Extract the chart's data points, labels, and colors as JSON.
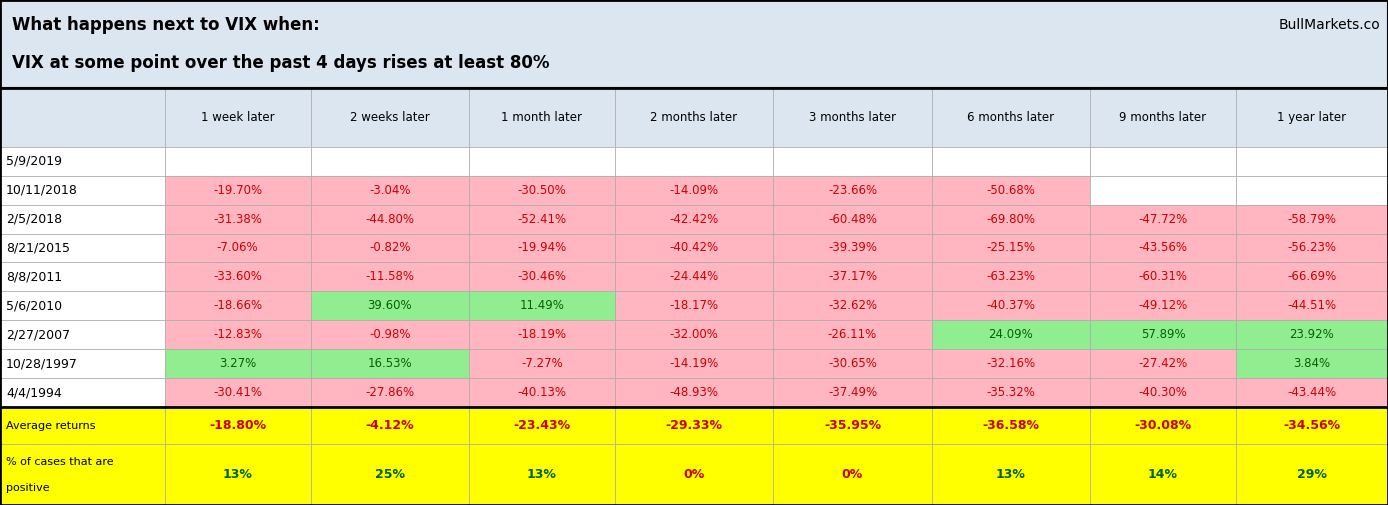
{
  "title_line1": "What happens next to VIX when:",
  "title_line2": "VIX at some point over the past 4 days rises at least 80%",
  "watermark": "BullMarkets.co",
  "columns": [
    "",
    "1 week later",
    "2 weeks later",
    "1 month later",
    "2 months later",
    "3 months later",
    "6 months later",
    "9 months later",
    "1 year later"
  ],
  "rows": [
    {
      "date": "5/9/2019",
      "values": [
        null,
        null,
        null,
        null,
        null,
        null,
        null,
        null
      ]
    },
    {
      "date": "10/11/2018",
      "values": [
        "-19.70%",
        "-3.04%",
        "-30.50%",
        "-14.09%",
        "-23.66%",
        "-50.68%",
        null,
        null
      ]
    },
    {
      "date": "2/5/2018",
      "values": [
        "-31.38%",
        "-44.80%",
        "-52.41%",
        "-42.42%",
        "-60.48%",
        "-69.80%",
        "-47.72%",
        "-58.79%"
      ]
    },
    {
      "date": "8/21/2015",
      "values": [
        "-7.06%",
        "-0.82%",
        "-19.94%",
        "-40.42%",
        "-39.39%",
        "-25.15%",
        "-43.56%",
        "-56.23%"
      ]
    },
    {
      "date": "8/8/2011",
      "values": [
        "-33.60%",
        "-11.58%",
        "-30.46%",
        "-24.44%",
        "-37.17%",
        "-63.23%",
        "-60.31%",
        "-66.69%"
      ]
    },
    {
      "date": "5/6/2010",
      "values": [
        "-18.66%",
        "39.60%",
        "11.49%",
        "-18.17%",
        "-32.62%",
        "-40.37%",
        "-49.12%",
        "-44.51%"
      ]
    },
    {
      "date": "2/27/2007",
      "values": [
        "-12.83%",
        "-0.98%",
        "-18.19%",
        "-32.00%",
        "-26.11%",
        "24.09%",
        "57.89%",
        "23.92%"
      ]
    },
    {
      "date": "10/28/1997",
      "values": [
        "3.27%",
        "16.53%",
        "-7.27%",
        "-14.19%",
        "-30.65%",
        "-32.16%",
        "-27.42%",
        "3.84%"
      ]
    },
    {
      "date": "4/4/1994",
      "values": [
        "-30.41%",
        "-27.86%",
        "-40.13%",
        "-48.93%",
        "-37.49%",
        "-35.32%",
        "-40.30%",
        "-43.44%"
      ]
    }
  ],
  "avg_returns": [
    "-18.80%",
    "-4.12%",
    "-23.43%",
    "-29.33%",
    "-35.95%",
    "-36.58%",
    "-30.08%",
    "-34.56%"
  ],
  "pct_positive": [
    "13%",
    "25%",
    "13%",
    "0%",
    "0%",
    "13%",
    "14%",
    "29%"
  ],
  "header_bg": "#dce6f1",
  "positive_bg": "#90ee90",
  "negative_bg": "#ffb6c1",
  "empty_bg": "#ffffff",
  "avg_bg": "#ffff00",
  "title_bg": "#dce6f1",
  "col_widths_raw": [
    1.3,
    1.15,
    1.25,
    1.15,
    1.25,
    1.25,
    1.25,
    1.15,
    1.2
  ],
  "title_fontsize": 12,
  "header_fontsize": 8.5,
  "data_fontsize": 8.5,
  "avg_fontsize": 9,
  "pct_fontsize": 9,
  "date_fontsize": 9
}
